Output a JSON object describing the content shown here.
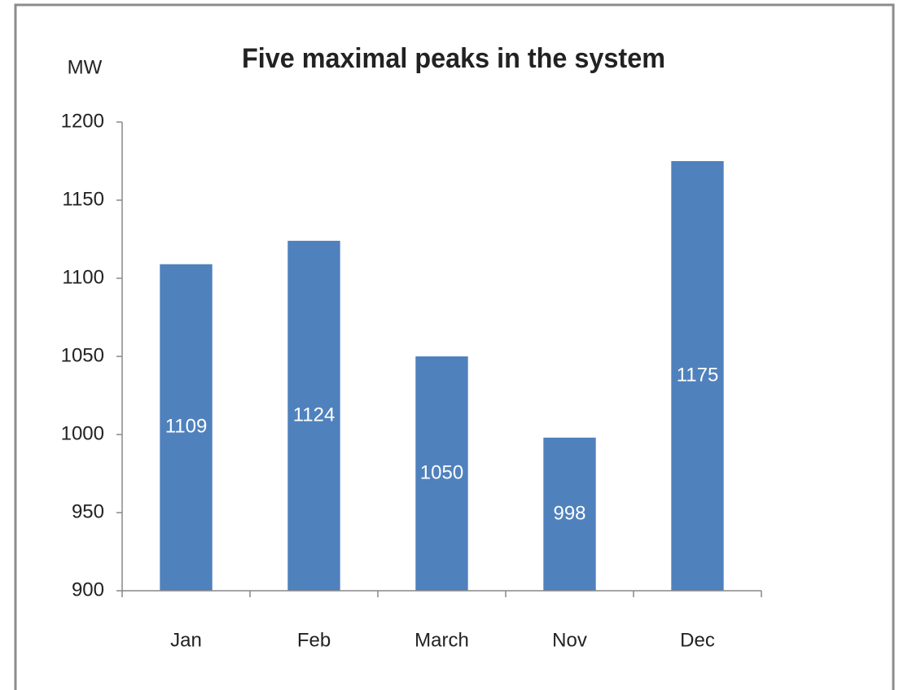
{
  "chart_data": {
    "type": "bar",
    "title": "Five maximal peaks in the system",
    "y_label": "MW",
    "categories": [
      "Jan",
      "Feb",
      "March",
      "Nov",
      "Dec"
    ],
    "values": [
      1109,
      1124,
      1050,
      998,
      1175
    ],
    "color": "#4f81bd",
    "ylim": [
      900,
      1200
    ],
    "yticks": [
      900,
      950,
      1000,
      1050,
      1100,
      1150,
      1200
    ],
    "grid": false,
    "data_labels": true
  }
}
